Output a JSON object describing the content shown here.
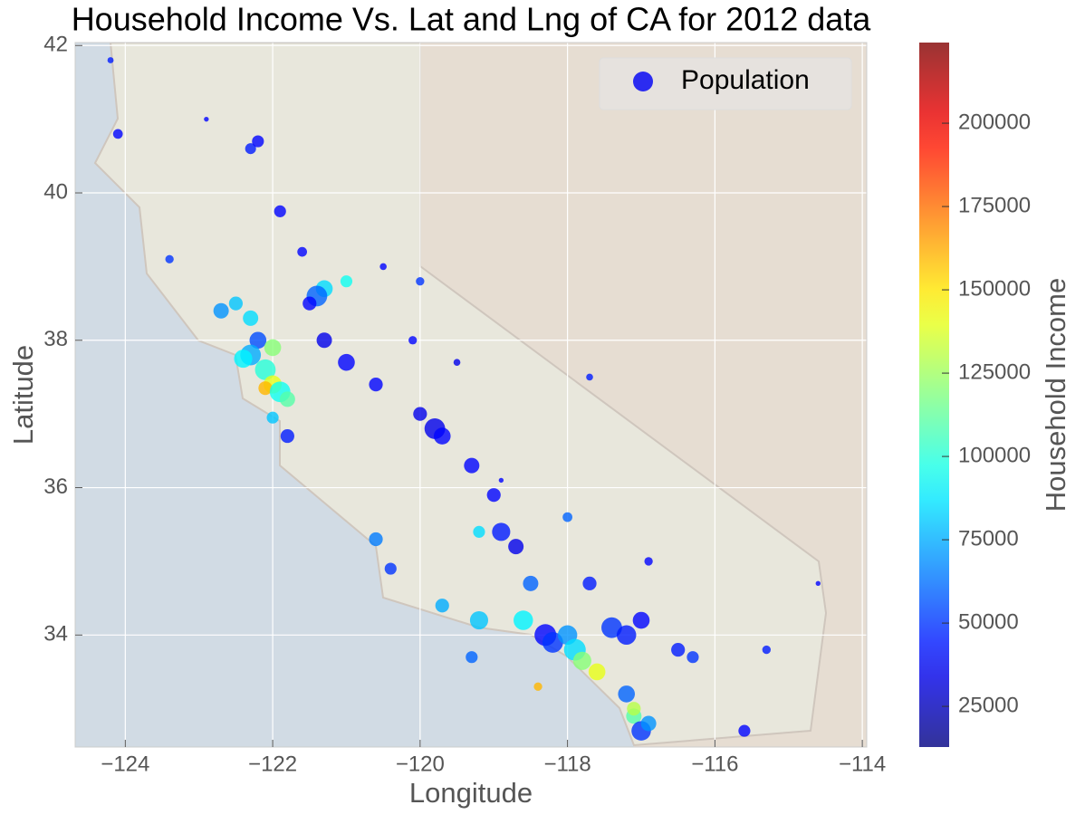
{
  "chart_data": {
    "type": "scatter",
    "title": "Household Income Vs. Lat and Lng of CA for 2012 data",
    "x_label": "Longitude",
    "y_label": "Latitude",
    "xlim": [
      -124.68,
      -113.94
    ],
    "ylim": [
      32.48,
      42.04
    ],
    "xticks": [
      {
        "value": -124,
        "label": "−124"
      },
      {
        "value": -122,
        "label": "−122"
      },
      {
        "value": -120,
        "label": "−120"
      },
      {
        "value": -118,
        "label": "−118"
      },
      {
        "value": -116,
        "label": "−116"
      },
      {
        "value": -114,
        "label": "−114"
      }
    ],
    "yticks": [
      34,
      36,
      38,
      40,
      42
    ],
    "grid": true,
    "legend_position": "upper right",
    "legend_color": "#2b2bf0",
    "colorbar_label": "Household Income",
    "cmap": "jet",
    "alpha": 0.8,
    "clim": [
      12800,
      224200
    ],
    "cticks": [
      25000,
      50000,
      75000,
      100000,
      125000,
      150000,
      175000,
      200000
    ],
    "series": [
      {
        "name": "Population",
        "x": [
          -124.2,
          -124.1,
          -123.4,
          -122.3,
          -122.2,
          -121.9,
          -121.6,
          -121.3,
          -121.4,
          -121.0,
          -121.5,
          -122.5,
          -122.7,
          -122.3,
          -122.2,
          -122.0,
          -122.3,
          -122.4,
          -122.1,
          -122.0,
          -122.1,
          -121.9,
          -121.8,
          -121.8,
          -122.0,
          -121.3,
          -121.0,
          -120.6,
          -120.0,
          -119.8,
          -119.7,
          -119.3,
          -119.0,
          -118.9,
          -118.7,
          -119.2,
          -120.6,
          -120.4,
          -119.7,
          -119.2,
          -119.3,
          -118.6,
          -118.5,
          -118.3,
          -118.2,
          -118.0,
          -117.9,
          -117.8,
          -117.6,
          -117.4,
          -117.2,
          -117.0,
          -116.5,
          -116.3,
          -117.2,
          -117.1,
          -117.0,
          -117.1,
          -116.9,
          -115.6,
          -115.3,
          -118.4,
          -118.0,
          -117.7,
          -116.9,
          -119.5,
          -120.5,
          -120.0,
          -120.1,
          -117.7,
          -114.6,
          -118.9,
          -122.9
        ],
        "y": [
          41.8,
          40.8,
          39.1,
          40.6,
          40.7,
          39.75,
          39.2,
          38.7,
          38.6,
          38.8,
          38.5,
          38.5,
          38.4,
          38.3,
          38.0,
          37.9,
          37.8,
          37.75,
          37.6,
          37.4,
          37.35,
          37.3,
          37.2,
          36.7,
          36.95,
          38.0,
          37.7,
          37.4,
          37.0,
          36.8,
          36.7,
          36.3,
          35.9,
          35.4,
          35.2,
          35.4,
          35.3,
          34.9,
          34.4,
          34.2,
          33.7,
          34.2,
          34.7,
          34.0,
          33.9,
          34.0,
          33.8,
          33.65,
          33.5,
          34.1,
          34.0,
          34.2,
          33.8,
          33.7,
          33.2,
          32.9,
          32.7,
          33.0,
          32.8,
          32.7,
          33.8,
          33.3,
          35.6,
          34.7,
          35.0,
          37.7,
          39.0,
          38.8,
          38.0,
          37.5,
          34.7,
          36.1,
          41.0
        ],
        "color_values": [
          45000,
          40000,
          50000,
          45000,
          40000,
          40000,
          40000,
          85000,
          60000,
          95000,
          40000,
          80000,
          70000,
          85000,
          55000,
          120000,
          75000,
          90000,
          100000,
          140000,
          160000,
          95000,
          110000,
          45000,
          80000,
          35000,
          40000,
          40000,
          35000,
          35000,
          40000,
          40000,
          40000,
          45000,
          35000,
          85000,
          65000,
          50000,
          75000,
          80000,
          60000,
          90000,
          60000,
          40000,
          50000,
          70000,
          85000,
          120000,
          140000,
          50000,
          45000,
          40000,
          45000,
          50000,
          60000,
          110000,
          50000,
          130000,
          70000,
          40000,
          45000,
          160000,
          60000,
          45000,
          40000,
          35000,
          40000,
          50000,
          40000,
          45000,
          40000,
          40000,
          40000
        ],
        "sizes": [
          8000,
          20000,
          15000,
          25000,
          30000,
          30000,
          20000,
          60000,
          90000,
          30000,
          40000,
          40000,
          50000,
          50000,
          60000,
          60000,
          90000,
          70000,
          90000,
          70000,
          40000,
          90000,
          50000,
          40000,
          30000,
          50000,
          60000,
          40000,
          40000,
          90000,
          60000,
          50000,
          40000,
          70000,
          50000,
          30000,
          40000,
          30000,
          40000,
          70000,
          30000,
          80000,
          50000,
          100000,
          90000,
          80000,
          100000,
          70000,
          60000,
          90000,
          80000,
          60000,
          40000,
          30000,
          60000,
          50000,
          80000,
          40000,
          50000,
          30000,
          15000,
          15000,
          20000,
          40000,
          15000,
          10000,
          10000,
          15000,
          15000,
          10000,
          5000,
          5000,
          5000
        ]
      }
    ]
  }
}
